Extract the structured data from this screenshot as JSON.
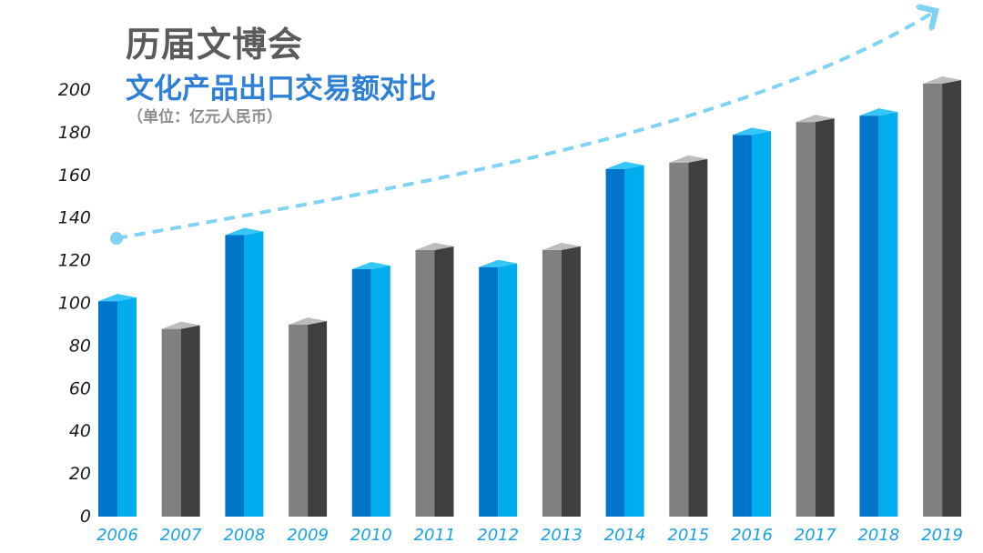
{
  "header": {
    "title": "历届文博会",
    "subtitle": "文化产品出口交易额对比",
    "unit": "（单位：亿元人民币）"
  },
  "colors": {
    "blue_front": "#0075c9",
    "blue_side": "#00aef0",
    "blue_top": "#36c6f7",
    "gray_front": "#808080",
    "gray_side": "#3f3f3f",
    "gray_top": "#bcbcbc",
    "axis_label": "#1a1a1a",
    "year_label": "#1aa2e6",
    "trend_arrow": "#7fd3f5"
  },
  "chart_data": {
    "type": "bar",
    "title": "文化产品出口交易额对比",
    "categories": [
      "2006",
      "2007",
      "2008",
      "2009",
      "2010",
      "2011",
      "2012",
      "2013",
      "2014",
      "2015",
      "2016",
      "2017",
      "2018",
      "2019"
    ],
    "values": [
      101,
      88,
      132,
      90,
      116,
      125,
      117,
      125,
      163,
      166,
      179,
      185,
      188,
      203
    ],
    "bar_styles": [
      "blue",
      "gray",
      "blue",
      "gray",
      "blue",
      "gray",
      "blue",
      "gray",
      "blue",
      "gray",
      "blue",
      "gray",
      "blue",
      "gray"
    ],
    "ylim": [
      0,
      200
    ],
    "yticks": [
      0,
      20,
      40,
      60,
      80,
      100,
      120,
      140,
      160,
      180,
      200
    ],
    "grid": false,
    "trend_arrow": true
  }
}
